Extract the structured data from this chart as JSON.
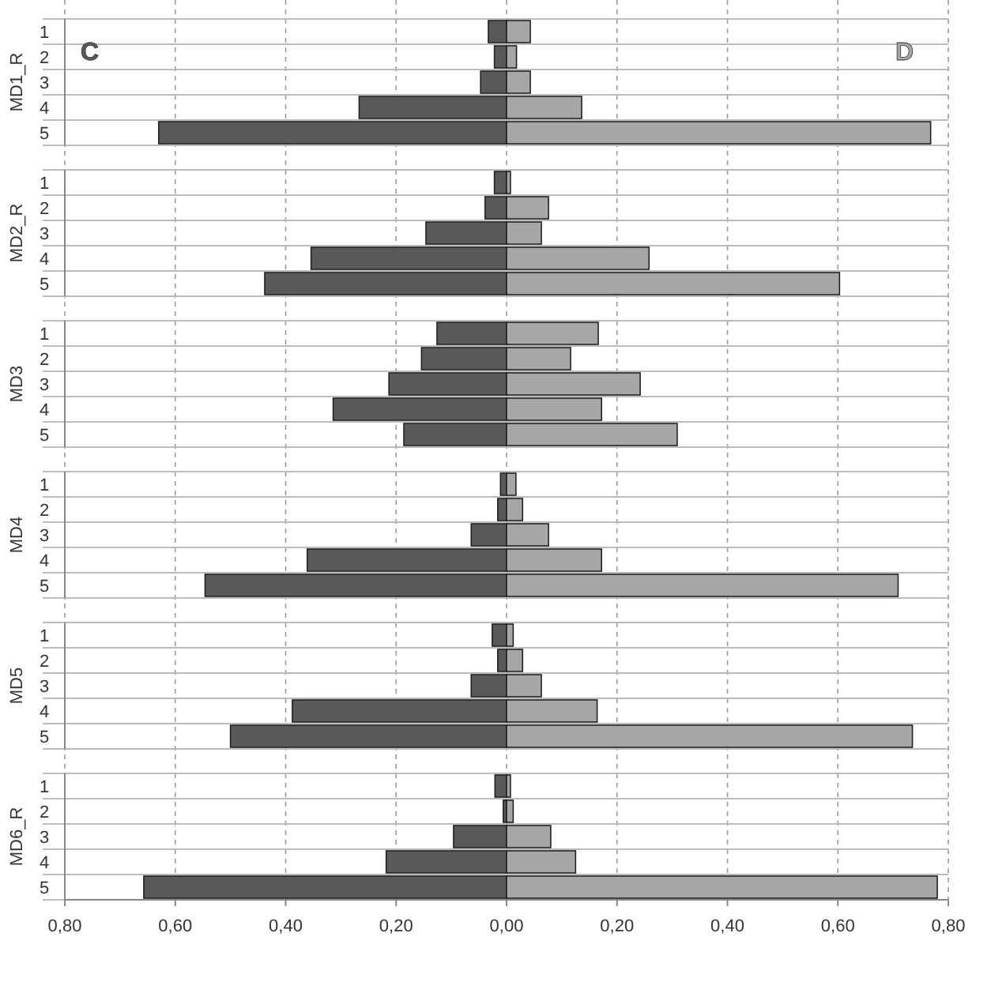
{
  "chart_data": [
    {
      "type": "bar",
      "orientation": "horizontal",
      "stacked": true,
      "ylabel": "MD1_R",
      "categories": [
        "1",
        "2",
        "3",
        "4",
        "5"
      ],
      "xlim": [
        -0.8,
        0.8
      ],
      "xticks": [
        -0.8,
        -0.6,
        -0.4,
        -0.2,
        0,
        0.2,
        0.4,
        0.6,
        0.8
      ],
      "tick_labels": "y",
      "grid": true,
      "series": [
        {
          "name": "C",
          "color": "#595959",
          "values": [
            -0.033,
            -0.022,
            -0.047,
            -0.267,
            -0.63
          ]
        },
        {
          "name": "D",
          "color": "#a6a6a6",
          "values": [
            0.043,
            0.018,
            0.043,
            0.136,
            0.768
          ]
        }
      ]
    },
    {
      "type": "bar",
      "orientation": "horizontal",
      "stacked": true,
      "ylabel": "MD2_R",
      "categories": [
        "1",
        "2",
        "3",
        "4",
        "5"
      ],
      "xlim": [
        -0.8,
        0.8
      ],
      "xticks": [
        -0.8,
        -0.6,
        -0.4,
        -0.2,
        0,
        0.2,
        0.4,
        0.6,
        0.8
      ],
      "tick_labels": "y",
      "grid": true,
      "series": [
        {
          "color": "#595959",
          "values": [
            -0.022,
            -0.039,
            -0.146,
            -0.354,
            -0.438
          ]
        },
        {
          "color": "#a6a6a6",
          "values": [
            0.007,
            0.076,
            0.063,
            0.258,
            0.603
          ]
        }
      ]
    },
    {
      "type": "bar",
      "orientation": "horizontal",
      "stacked": true,
      "ylabel": "MD3",
      "categories": [
        "1",
        "2",
        "3",
        "4",
        "5"
      ],
      "xlim": [
        -0.8,
        0.8
      ],
      "xticks": [
        -0.8,
        -0.6,
        -0.4,
        -0.2,
        0,
        0.2,
        0.4,
        0.6,
        0.8
      ],
      "tick_labels": "y",
      "grid": true,
      "series": [
        {
          "color": "#595959",
          "values": [
            -0.126,
            -0.154,
            -0.213,
            -0.314,
            -0.186
          ]
        },
        {
          "color": "#a6a6a6",
          "values": [
            0.166,
            0.116,
            0.242,
            0.172,
            0.309
          ]
        }
      ]
    },
    {
      "type": "bar",
      "orientation": "horizontal",
      "stacked": true,
      "ylabel": "MD4",
      "categories": [
        "1",
        "2",
        "3",
        "4",
        "5"
      ],
      "xlim": [
        -0.8,
        0.8
      ],
      "xticks": [
        -0.8,
        -0.6,
        -0.4,
        -0.2,
        0,
        0.2,
        0.4,
        0.6,
        0.8
      ],
      "tick_labels": "y",
      "grid": true,
      "series": [
        {
          "color": "#595959",
          "values": [
            -0.011,
            -0.016,
            -0.064,
            -0.361,
            -0.546
          ]
        },
        {
          "color": "#a6a6a6",
          "values": [
            0.017,
            0.029,
            0.076,
            0.172,
            0.709
          ]
        }
      ]
    },
    {
      "type": "bar",
      "orientation": "horizontal",
      "stacked": true,
      "ylabel": "MD5",
      "categories": [
        "1",
        "2",
        "3",
        "4",
        "5"
      ],
      "xlim": [
        -0.8,
        0.8
      ],
      "xticks": [
        -0.8,
        -0.6,
        -0.4,
        -0.2,
        0,
        0.2,
        0.4,
        0.6,
        0.8
      ],
      "tick_labels": "y",
      "grid": true,
      "series": [
        {
          "color": "#595959",
          "values": [
            -0.026,
            -0.016,
            -0.064,
            -0.388,
            -0.5
          ]
        },
        {
          "color": "#a6a6a6",
          "values": [
            0.012,
            0.029,
            0.063,
            0.164,
            0.735
          ]
        }
      ]
    },
    {
      "type": "bar",
      "orientation": "horizontal",
      "stacked": true,
      "ylabel": "MD6_R",
      "categories": [
        "1",
        "2",
        "3",
        "4",
        "5"
      ],
      "xlim": [
        -0.8,
        0.8
      ],
      "xticks": [
        {
          "value": -0.8,
          "label": "0,80"
        },
        {
          "value": -0.6,
          "label": "0,60"
        },
        {
          "value": -0.4,
          "label": "0,40"
        },
        {
          "value": -0.2,
          "label": "0,20"
        },
        {
          "value": 0,
          "label": "0,00"
        },
        {
          "value": 0.2,
          "label": "0,20"
        },
        {
          "value": 0.4,
          "label": "0,40"
        },
        {
          "value": 0.6,
          "label": "0,60"
        },
        {
          "value": 0.8,
          "label": "0,80"
        }
      ],
      "grid": true,
      "series": [
        {
          "color": "#595959",
          "values": [
            -0.021,
            -0.006,
            -0.096,
            -0.218,
            -0.657
          ]
        },
        {
          "color": "#a6a6a6",
          "values": [
            0.007,
            0.012,
            0.08,
            0.125,
            0.78
          ]
        }
      ]
    }
  ]
}
